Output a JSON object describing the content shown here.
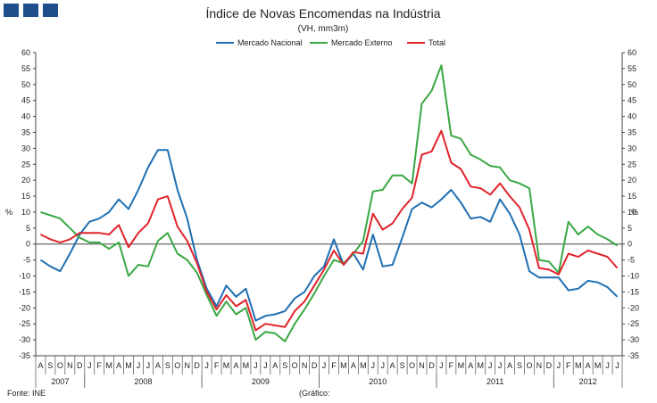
{
  "chart_data": {
    "type": "line",
    "title": "Índice de Novas Encomendas na Indústria",
    "subtitle": "(VH, mm3m)",
    "ylabel_left": "%",
    "ylabel_right": "%",
    "ylim": [
      -35,
      60
    ],
    "yticks": [
      60,
      55,
      50,
      45,
      40,
      35,
      30,
      25,
      20,
      15,
      10,
      5,
      0,
      -5,
      -10,
      -15,
      -20,
      -25,
      -30,
      -35
    ],
    "grid": false,
    "legend_position": "top-center",
    "months": [
      "A",
      "S",
      "O",
      "N",
      "D",
      "J",
      "F",
      "M",
      "A",
      "M",
      "J",
      "J",
      "A",
      "S",
      "O",
      "N",
      "D",
      "J",
      "F",
      "M",
      "A",
      "M",
      "J",
      "J",
      "A",
      "S",
      "O",
      "N",
      "D",
      "J",
      "F",
      "M",
      "A",
      "M",
      "J",
      "J",
      "A",
      "S",
      "O",
      "N",
      "D",
      "J",
      "F",
      "M",
      "A",
      "M",
      "J",
      "J",
      "A",
      "S",
      "O",
      "N",
      "D",
      "J",
      "F",
      "M",
      "A",
      "M",
      "J",
      "J"
    ],
    "years": [
      {
        "label": "2007",
        "start": 0,
        "end": 4
      },
      {
        "label": "2008",
        "start": 5,
        "end": 16
      },
      {
        "label": "2009",
        "start": 17,
        "end": 28
      },
      {
        "label": "2010",
        "start": 29,
        "end": 40
      },
      {
        "label": "2011",
        "start": 41,
        "end": 52
      },
      {
        "label": "2012",
        "start": 53,
        "end": 59
      }
    ],
    "series": [
      {
        "name": "Mercado Nacional",
        "color": "#1f6fb2",
        "values": [
          -5,
          -7,
          -8.5,
          -3,
          3,
          7,
          8,
          10,
          14,
          11,
          17,
          24,
          29.5,
          29.5,
          17,
          8,
          -5,
          -14,
          -19.5,
          -13,
          -16.5,
          -14,
          -24,
          -22.5,
          -22,
          -21,
          -17,
          -15,
          -10,
          -7,
          1.5,
          -6.5,
          -3,
          -8,
          3,
          -7,
          -6.5,
          2,
          11,
          13,
          11.5,
          14,
          17,
          13,
          8,
          8.5,
          7,
          14,
          9.5,
          3,
          -8.5,
          -10.5,
          -10.5,
          -10.5,
          -14.5,
          -14,
          -11.5,
          -12,
          -13.5,
          -16.5
        ]
      },
      {
        "name": "Mercado Externo",
        "color": "#3aa843",
        "values": [
          10,
          9,
          8,
          5,
          2,
          0.5,
          0.5,
          -1.5,
          0.5,
          -10,
          -6.5,
          -7,
          1,
          3.5,
          -3,
          -5,
          -9,
          -16,
          -22.5,
          -18,
          -22,
          -20,
          -30,
          -27.5,
          -28,
          -30.5,
          -25,
          -20.5,
          -15.5,
          -10,
          -5,
          -6,
          -3,
          1,
          16.5,
          17,
          21.5,
          21.5,
          19,
          44,
          48,
          56,
          34,
          33,
          28,
          26.5,
          24.5,
          24,
          20,
          19,
          17.5,
          -5,
          -5.5,
          -9,
          7,
          3,
          5.5,
          3,
          1.5,
          -0.5
        ]
      },
      {
        "name": "Total",
        "color": "#e0232b",
        "values": [
          3,
          1.5,
          0.5,
          1.5,
          3.5,
          3.5,
          3.5,
          3,
          6,
          -1,
          3.5,
          6.5,
          14,
          15,
          5.5,
          1,
          -6,
          -15,
          -20.5,
          -16,
          -19.5,
          -17.5,
          -27,
          -25,
          -25.5,
          -26,
          -21,
          -18,
          -13,
          -8,
          -2,
          -6.5,
          -2.5,
          -3,
          9.5,
          4.5,
          6.5,
          11,
          14.5,
          28,
          29,
          35.5,
          25.5,
          23.5,
          18,
          17.5,
          15.5,
          19,
          15,
          11.5,
          4.5,
          -7.5,
          -8,
          -9.5,
          -3,
          -4,
          -2,
          -3,
          -4,
          -7.5
        ]
      }
    ],
    "footer_source": "Fonte: INE",
    "footer_note": "(Gráfico:"
  }
}
